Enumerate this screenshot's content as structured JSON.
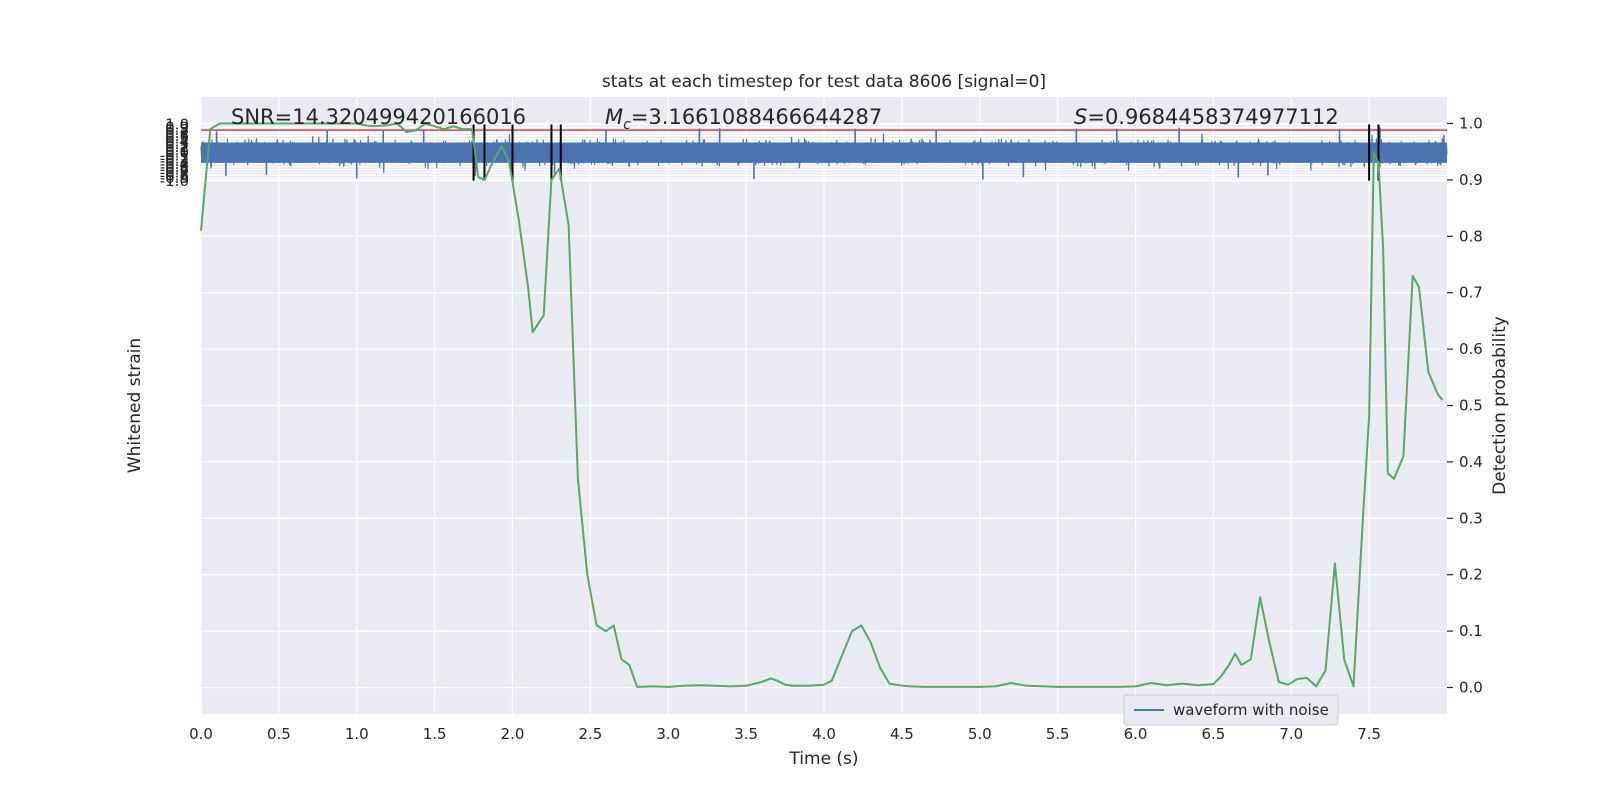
{
  "chart_data": {
    "type": "line",
    "title": "stats at each timestep for test data 8606 [signal=0]",
    "xlabel": "Time (s)",
    "ylabel": "Whitened strain",
    "y2label": "Detection probability",
    "xlim": [
      0.0,
      8.0
    ],
    "ylim": [
      -1.05,
      1.1
    ],
    "y2lim": [
      -0.045,
      1.045
    ],
    "xticks": [
      "0.0",
      "0.5",
      "1.0",
      "1.5",
      "2.0",
      "2.5",
      "3.0",
      "3.5",
      "4.0",
      "4.5",
      "5.0",
      "5.5",
      "6.0",
      "6.5",
      "7.0",
      "7.5"
    ],
    "yticks": [
      "1.0",
      "0.9",
      "0.8",
      "0.7",
      "0.6",
      "0.5",
      "0.4",
      "0.3",
      "0.2",
      "0.1",
      "0.0",
      "-0.1",
      "-0.2",
      "-0.3",
      "-0.4",
      "-0.5",
      "-0.6",
      "-0.7",
      "-0.8",
      "-0.9",
      "-1.0"
    ],
    "y2ticks": [
      "1.0",
      "0.9",
      "0.8",
      "0.7",
      "0.6",
      "0.5",
      "0.4",
      "0.3",
      "0.2",
      "0.1",
      "0.0"
    ],
    "annotations": {
      "snr": "SNR=14.320499420166016",
      "mc_symbol": "M",
      "mc_sub": "c",
      "mc_value": "=3.1661088466644287",
      "s_symbol": "S",
      "s_value": "=0.9684458374977112"
    },
    "legend": {
      "placement": "lower-right",
      "entries": [
        "waveform with noise"
      ]
    },
    "series": [
      {
        "name": "waveform with noise",
        "color": "#4c72b0",
        "axis": "left",
        "style": "dense noisy waveform",
        "envelope": {
          "typical_upper": 0.55,
          "typical_lower": -0.55,
          "peak_max": 0.93,
          "peak_min": -0.95
        },
        "peaks": [
          [
            0.1,
            0.76
          ],
          [
            0.16,
            -0.82
          ],
          [
            0.42,
            -0.78
          ],
          [
            0.81,
            0.82
          ],
          [
            1.0,
            -0.92
          ],
          [
            1.17,
            0.8
          ],
          [
            1.43,
            0.8
          ],
          [
            1.76,
            -0.83
          ],
          [
            2.27,
            -0.75
          ],
          [
            2.6,
            0.82
          ],
          [
            3.2,
            0.86
          ],
          [
            3.33,
            0.87
          ],
          [
            3.55,
            -0.93
          ],
          [
            4.2,
            0.85
          ],
          [
            4.72,
            0.82
          ],
          [
            5.02,
            -0.95
          ],
          [
            5.28,
            -0.87
          ],
          [
            5.62,
            0.85
          ],
          [
            5.88,
            0.85
          ],
          [
            6.28,
            0.89
          ],
          [
            6.66,
            -0.88
          ],
          [
            6.85,
            -0.8
          ],
          [
            7.31,
            0.83
          ],
          [
            7.57,
            0.9
          ],
          [
            7.98,
            0.62
          ]
        ]
      },
      {
        "color": "#55a868",
        "axis": "right",
        "x": [
          0.0,
          0.06,
          0.12,
          0.2,
          0.3,
          0.4,
          0.5,
          0.6,
          0.7,
          0.8,
          0.9,
          1.0,
          1.05,
          1.1,
          1.2,
          1.26,
          1.32,
          1.38,
          1.44,
          1.5,
          1.56,
          1.62,
          1.68,
          1.74,
          1.78,
          1.82,
          1.87,
          1.93,
          1.98,
          2.04,
          2.1,
          2.13,
          2.2,
          2.25,
          2.3,
          2.36,
          2.42,
          2.48,
          2.54,
          2.6,
          2.65,
          2.7,
          2.75,
          2.8,
          2.9,
          3.0,
          3.1,
          3.2,
          3.3,
          3.4,
          3.5,
          3.6,
          3.66,
          3.7,
          3.75,
          3.8,
          3.9,
          4.0,
          4.05,
          4.12,
          4.18,
          4.24,
          4.3,
          4.36,
          4.42,
          4.48,
          4.55,
          4.65,
          4.8,
          5.0,
          5.1,
          5.2,
          5.3,
          5.5,
          5.7,
          5.9,
          6.0,
          6.1,
          6.2,
          6.3,
          6.4,
          6.5,
          6.55,
          6.6,
          6.64,
          6.68,
          6.74,
          6.8,
          6.86,
          6.92,
          6.98,
          7.04,
          7.1,
          7.16,
          7.22,
          7.28,
          7.34,
          7.4,
          7.46,
          7.5,
          7.53,
          7.56,
          7.59,
          7.62,
          7.66,
          7.72,
          7.78,
          7.82,
          7.88,
          7.94,
          7.97
        ],
        "values": [
          0.81,
          0.99,
          1.0,
          1.0,
          1.0,
          1.0,
          1.0,
          1.0,
          1.0,
          1.0,
          1.0,
          1.0,
          0.997,
          0.995,
          0.997,
          1.0,
          0.985,
          0.988,
          1.0,
          0.995,
          0.99,
          0.995,
          0.99,
          0.99,
          0.905,
          0.9,
          0.93,
          0.96,
          0.93,
          0.83,
          0.71,
          0.63,
          0.66,
          0.9,
          0.92,
          0.82,
          0.37,
          0.2,
          0.11,
          0.1,
          0.11,
          0.05,
          0.04,
          0.001,
          0.002,
          0.001,
          0.003,
          0.004,
          0.003,
          0.002,
          0.003,
          0.01,
          0.016,
          0.012,
          0.005,
          0.003,
          0.003,
          0.005,
          0.012,
          0.06,
          0.1,
          0.11,
          0.08,
          0.035,
          0.007,
          0.004,
          0.002,
          0.001,
          0.001,
          0.001,
          0.002,
          0.008,
          0.003,
          0.001,
          0.001,
          0.001,
          0.002,
          0.008,
          0.004,
          0.007,
          0.004,
          0.006,
          0.02,
          0.04,
          0.06,
          0.04,
          0.05,
          0.16,
          0.08,
          0.01,
          0.005,
          0.015,
          0.017,
          0.002,
          0.03,
          0.22,
          0.05,
          0.002,
          0.3,
          0.48,
          0.95,
          0.93,
          0.78,
          0.38,
          0.37,
          0.41,
          0.73,
          0.71,
          0.56,
          0.52,
          0.51
        ]
      },
      {
        "color": "#c44e52",
        "axis": "left",
        "style": "horizontal threshold",
        "y": 0.8
      },
      {
        "color": "#000000",
        "axis": "vertical",
        "style": "vertical markers",
        "x": [
          1.75,
          1.82,
          2.0,
          2.25,
          2.31,
          7.5,
          7.56
        ]
      }
    ],
    "grid": true,
    "background": "#eaeaf2"
  }
}
